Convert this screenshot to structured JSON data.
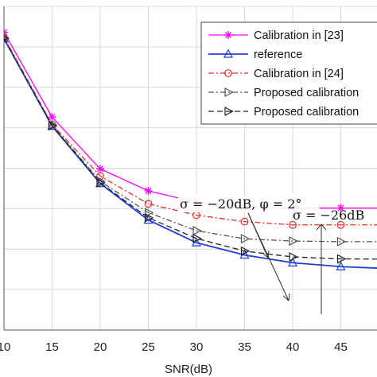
{
  "chart_data": {
    "type": "line",
    "xlabel": "SNR(dB)",
    "ylabel": "",
    "x": [
      10,
      15,
      20,
      25,
      30,
      35,
      40,
      45,
      50
    ],
    "xticks": [
      "10",
      "15",
      "20",
      "25",
      "30",
      "35",
      "40",
      "45"
    ],
    "xlim": [
      10,
      50
    ],
    "grid": true,
    "legend_position": "top-right",
    "series": [
      {
        "name": "Calibration in [23]",
        "color": "#ff00ff",
        "dash": "solid",
        "marker": "star",
        "values": [
          0.92,
          0.658,
          0.498,
          0.43,
          0.395,
          0.382,
          0.377,
          0.377,
          0.377
        ]
      },
      {
        "name": "reference",
        "color": "#1f3fd6",
        "dash": "solid",
        "marker": "triangle-up",
        "values": [
          0.9,
          0.63,
          0.453,
          0.34,
          0.27,
          0.232,
          0.208,
          0.196,
          0.19
        ]
      },
      {
        "name": "Calibration in [24]",
        "color": "#e0302a",
        "dash": "dashdot",
        "marker": "circle",
        "values": [
          0.905,
          0.635,
          0.476,
          0.39,
          0.355,
          0.335,
          0.325,
          0.325,
          0.325
        ]
      },
      {
        "name": "Proposed calibration",
        "color": "#555555",
        "dash": "dashdot",
        "marker": "triangle-right",
        "values": [
          0.903,
          0.633,
          0.46,
          0.363,
          0.307,
          0.282,
          0.275,
          0.273,
          0.273
        ]
      },
      {
        "name": "Proposed calibration",
        "color": "#222222",
        "dash": "dashed",
        "marker": "triangle-right",
        "values": [
          0.901,
          0.631,
          0.455,
          0.347,
          0.283,
          0.244,
          0.226,
          0.22,
          0.219
        ]
      }
    ],
    "annotations": [
      {
        "text": "σ = −20dB, φ = 2°"
      },
      {
        "text": "σ = −26dB"
      }
    ]
  }
}
